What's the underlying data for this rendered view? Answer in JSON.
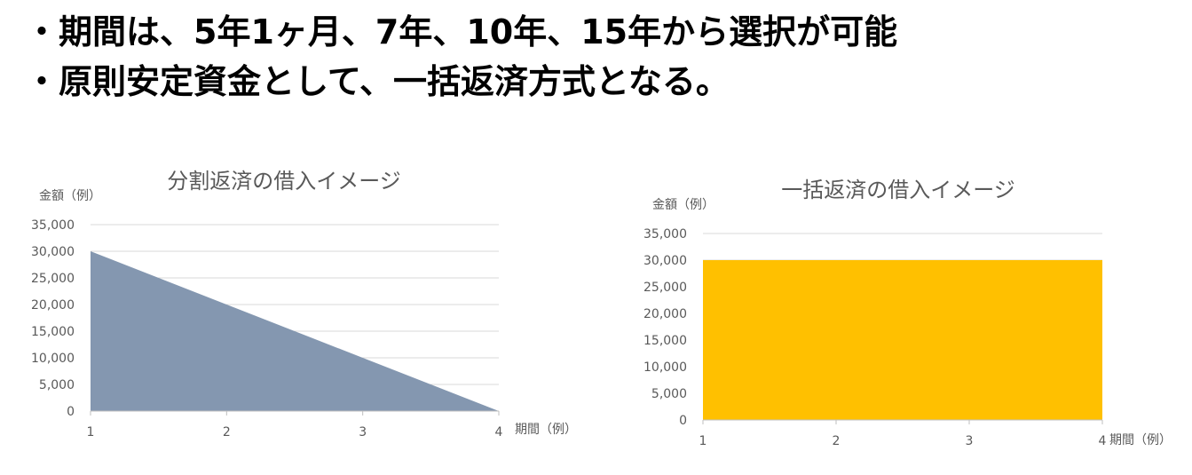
{
  "bullets": [
    "・期間は、5年1ヶ月、7年、10年、15年から選択が可能",
    "・原則安定資金として、一括返済方式となる。"
  ],
  "chart_data": [
    {
      "type": "area",
      "title": "分割返済の借入イメージ",
      "xlabel": "期間（例）",
      "ylabel": "金額（例）",
      "x": [
        1,
        2,
        3,
        4
      ],
      "values": [
        30000,
        20000,
        10000,
        0
      ],
      "ylim": [
        0,
        35000
      ],
      "yticks": [
        "0",
        "5,000",
        "10,000",
        "15,000",
        "20,000",
        "25,000",
        "30,000",
        "35,000"
      ],
      "color": "#8497b0",
      "grid": true,
      "legend": "none"
    },
    {
      "type": "area",
      "title": "一括返済の借入イメージ",
      "xlabel": "期間（例）",
      "ylabel": "金額（例）",
      "x": [
        1,
        2,
        3,
        4
      ],
      "values": [
        30000,
        30000,
        30000,
        30000
      ],
      "ylim": [
        0,
        35000
      ],
      "yticks": [
        "0",
        "5,000",
        "10,000",
        "15,000",
        "20,000",
        "25,000",
        "30,000",
        "35,000"
      ],
      "color": "#ffc000",
      "grid": true,
      "legend": "none"
    }
  ]
}
